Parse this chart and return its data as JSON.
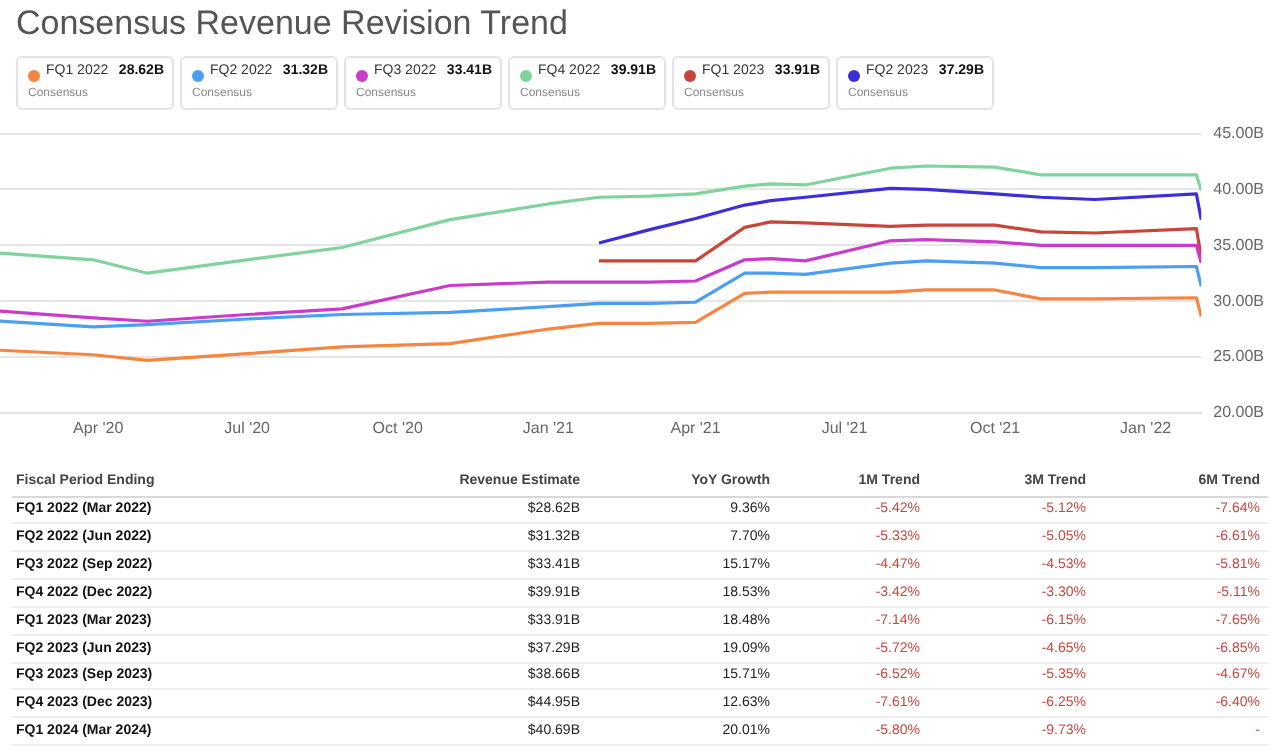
{
  "chart_data": [
    {
      "type": "line",
      "title": "Consensus Revenue Revision Trend",
      "annotations": [
        "28.62B",
        "31.32B",
        "33.41B",
        "39.91B",
        "33.91B",
        "37.29B",
        "Consensus"
      ],
      "x": [
        "2020-02-01",
        "2020-03-29",
        "2020-05-01",
        "2020-07-01",
        "2020-08-28",
        "2020-11-02",
        "2021-01-01",
        "2021-02-01",
        "2021-03-04",
        "2021-04-01",
        "2021-05-01",
        "2021-05-17",
        "2021-06-07",
        "2021-07-29",
        "2021-08-20",
        "2021-10-01",
        "2021-10-29",
        "2021-12-01",
        "2022-02-01",
        "2022-02-04"
      ],
      "series": [
        {
          "name": "FQ1 2022",
          "color": "#f5853f",
          "values": [
            25.6,
            25.2,
            24.7,
            25.3,
            25.9,
            26.2,
            27.5,
            28.0,
            28.0,
            28.1,
            30.7,
            30.8,
            30.8,
            30.8,
            31.0,
            31.0,
            30.2,
            30.2,
            30.3,
            28.62
          ]
        },
        {
          "name": "FQ2 2022",
          "color": "#4a9ff5",
          "values": [
            28.2,
            27.7,
            27.9,
            28.4,
            28.8,
            29.0,
            29.5,
            29.8,
            29.8,
            29.9,
            32.5,
            32.5,
            32.4,
            33.4,
            33.6,
            33.4,
            33.0,
            33.0,
            33.1,
            31.32
          ]
        },
        {
          "name": "FQ3 2022",
          "color": "#c93bc9",
          "values": [
            29.1,
            28.5,
            28.2,
            28.8,
            29.3,
            31.4,
            31.7,
            31.7,
            31.7,
            31.8,
            33.7,
            33.8,
            33.6,
            35.4,
            35.5,
            35.3,
            35.0,
            35.0,
            35.0,
            33.41
          ]
        },
        {
          "name": "FQ4 2022",
          "color": "#7fd49b",
          "values": [
            34.3,
            33.7,
            32.5,
            33.7,
            34.8,
            37.3,
            38.7,
            39.3,
            39.4,
            39.6,
            40.3,
            40.5,
            40.4,
            41.9,
            42.1,
            42.0,
            41.3,
            41.3,
            41.3,
            39.91
          ]
        },
        {
          "name": "FQ1 2023",
          "color": "#c9453a",
          "values": [
            null,
            null,
            null,
            null,
            null,
            null,
            null,
            33.6,
            33.6,
            33.6,
            36.6,
            37.1,
            37.0,
            36.7,
            36.8,
            36.8,
            36.2,
            36.1,
            36.5,
            33.91
          ]
        },
        {
          "name": "FQ2 2023",
          "color": "#3b2fd9",
          "values": [
            null,
            null,
            null,
            null,
            null,
            null,
            null,
            35.2,
            36.4,
            37.4,
            38.6,
            39.0,
            39.3,
            40.1,
            40.0,
            39.6,
            39.3,
            39.1,
            39.6,
            37.29
          ]
        }
      ],
      "xlim": [
        "2020-02-01",
        "2022-02-04"
      ],
      "xticks": [
        {
          "value": "2020-04-01",
          "label": "Apr '20"
        },
        {
          "value": "2020-07-01",
          "label": "Jul '20"
        },
        {
          "value": "2020-10-01",
          "label": "Oct '20"
        },
        {
          "value": "2021-01-01",
          "label": "Jan '21"
        },
        {
          "value": "2021-04-01",
          "label": "Apr '21"
        },
        {
          "value": "2021-07-01",
          "label": "Jul '21"
        },
        {
          "value": "2021-10-01",
          "label": "Oct '21"
        },
        {
          "value": "2022-01-01",
          "label": "Jan '22"
        }
      ],
      "ylim": [
        20,
        45
      ],
      "yticks": [
        {
          "value": 20,
          "label": "20.00B"
        },
        {
          "value": 25,
          "label": "25.00B"
        },
        {
          "value": 30,
          "label": "30.00B"
        },
        {
          "value": 35,
          "label": "35.00B"
        },
        {
          "value": 40,
          "label": "40.00B"
        },
        {
          "value": 45,
          "label": "45.00B"
        }
      ],
      "grid": "y",
      "legend": "top",
      "marker": "none"
    },
    {
      "type": "other",
      "ylabel": "Fiscal Period Ending",
      "categories": [
        "FQ1 2022 (Mar 2022)",
        "FQ2 2022 (Jun 2022)",
        "FQ3 2022 (Sep 2022)",
        "FQ4 2022 (Dec 2022)",
        "FQ1 2023 (Mar 2023)",
        "FQ2 2023 (Jun 2023)",
        "FQ3 2023 (Sep 2023)",
        "FQ4 2023 (Dec 2023)",
        "FQ1 2024 (Mar 2024)"
      ],
      "series": [
        {
          "name": "Revenue Estimate",
          "values": [
            28.62,
            31.32,
            33.41,
            39.91,
            33.91,
            37.29,
            38.66,
            44.95,
            40.69
          ],
          "value_labels": [
            "$28.62B",
            "$31.32B",
            "$33.41B",
            "$39.91B",
            "$33.91B",
            "$37.29B",
            "$38.66B",
            "$44.95B",
            "$40.69B"
          ]
        },
        {
          "name": "YoY Growth",
          "values": [
            9.36,
            7.7,
            15.17,
            18.53,
            18.48,
            19.09,
            15.71,
            12.63,
            20.01
          ],
          "value_labels": [
            "9.36%",
            "7.70%",
            "15.17%",
            "18.53%",
            "18.48%",
            "19.09%",
            "15.71%",
            "12.63%",
            "20.01%"
          ]
        },
        {
          "name": "1M Trend",
          "values": [
            -5.42,
            -5.33,
            -4.47,
            -3.42,
            -7.14,
            -5.72,
            -6.52,
            -7.61,
            -5.8
          ],
          "value_labels": [
            "-5.42%",
            "-5.33%",
            "-4.47%",
            "-3.42%",
            "-7.14%",
            "-5.72%",
            "-6.52%",
            "-7.61%",
            "-5.80%"
          ]
        },
        {
          "name": "3M Trend",
          "values": [
            -5.12,
            -5.05,
            -4.53,
            -3.3,
            -6.15,
            -4.65,
            -5.35,
            -6.25,
            -9.73
          ],
          "value_labels": [
            "-5.12%",
            "-5.05%",
            "-4.53%",
            "-3.30%",
            "-6.15%",
            "-4.65%",
            "-5.35%",
            "-6.25%",
            "-9.73%"
          ]
        },
        {
          "name": "6M Trend",
          "values": [
            -7.64,
            -6.61,
            -5.81,
            -5.11,
            -7.65,
            -6.85,
            -4.67,
            -6.4,
            null
          ],
          "value_labels": [
            "-7.64%",
            "-6.61%",
            "-5.81%",
            "-5.11%",
            "-7.65%",
            "-6.85%",
            "-4.67%",
            "-6.40%",
            "-"
          ]
        }
      ]
    }
  ]
}
